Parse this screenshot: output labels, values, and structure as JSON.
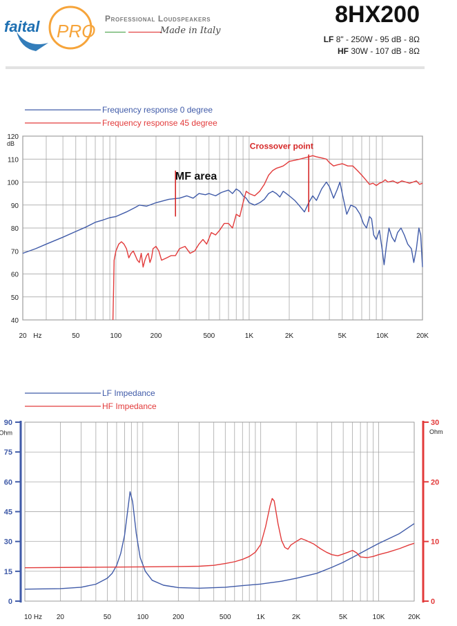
{
  "header": {
    "brand": "faital",
    "brand_sub": "PRO",
    "tagline": "Professional Loudspeakers",
    "made_in": "Made in Italy",
    "model": "8HX200",
    "spec_lf_label": "LF",
    "spec_lf": "8\" - 250W - 95 dB - 8Ω",
    "spec_hf_label": "HF",
    "spec_hf": "30W - 107 dB - 8Ω"
  },
  "colors": {
    "lf_blue": "#3f5aa8",
    "hf_red": "#e23a3a",
    "grid": "#9a9a9a",
    "annotation_red": "#d62828"
  },
  "chart_data": [
    {
      "type": "line",
      "x_scale": "log",
      "xlim": [
        20,
        20000
      ],
      "ylim": [
        40,
        120
      ],
      "ylabel": "dB",
      "xlabel": "Hz",
      "x_ticks": [
        20,
        50,
        100,
        200,
        500,
        1000,
        2000,
        5000,
        10000,
        20000
      ],
      "x_tick_labels": [
        "20",
        "50",
        "100",
        "200",
        "500",
        "1K",
        "2K",
        "5K",
        "10K",
        "20K"
      ],
      "y_ticks": [
        40,
        50,
        60,
        70,
        80,
        90,
        100,
        110,
        120
      ],
      "y_tick_labels": [
        "40",
        "50",
        "60",
        "70",
        "80",
        "90",
        "100",
        "110",
        "120"
      ],
      "grid": true,
      "legend": "top-left",
      "annotations": [
        {
          "text": "MF area",
          "x": 400,
          "y": 101
        },
        {
          "text": "Crossover point",
          "x": 1750,
          "y": 114.5
        }
      ],
      "markers": [
        {
          "x": 280,
          "y_range": [
            85,
            105
          ]
        },
        {
          "x": 2800,
          "y_range": [
            87,
            112
          ]
        }
      ],
      "series": [
        {
          "name": "Frequency response 0 degree",
          "color": "#3f5aa8",
          "points": [
            [
              20,
              69
            ],
            [
              25,
              71
            ],
            [
              30,
              73
            ],
            [
              40,
              76
            ],
            [
              50,
              78.5
            ],
            [
              60,
              80.5
            ],
            [
              70,
              82.5
            ],
            [
              80,
              83.5
            ],
            [
              90,
              84.5
            ],
            [
              100,
              85
            ],
            [
              120,
              87
            ],
            [
              140,
              89
            ],
            [
              150,
              90
            ],
            [
              170,
              89.5
            ],
            [
              200,
              91
            ],
            [
              250,
              92.5
            ],
            [
              300,
              93
            ],
            [
              340,
              94
            ],
            [
              380,
              93
            ],
            [
              420,
              95
            ],
            [
              470,
              94.5
            ],
            [
              500,
              95
            ],
            [
              560,
              94
            ],
            [
              620,
              95.5
            ],
            [
              700,
              96.5
            ],
            [
              750,
              95
            ],
            [
              800,
              97
            ],
            [
              850,
              96
            ],
            [
              900,
              94
            ],
            [
              950,
              93
            ],
            [
              1000,
              91
            ],
            [
              1100,
              90
            ],
            [
              1200,
              91
            ],
            [
              1300,
              92.5
            ],
            [
              1400,
              95
            ],
            [
              1500,
              96
            ],
            [
              1600,
              95
            ],
            [
              1700,
              93.5
            ],
            [
              1800,
              96
            ],
            [
              1900,
              95
            ],
            [
              2000,
              94
            ],
            [
              2200,
              92
            ],
            [
              2400,
              89.5
            ],
            [
              2600,
              87
            ],
            [
              2800,
              91
            ],
            [
              3000,
              94
            ],
            [
              3200,
              92
            ],
            [
              3500,
              97
            ],
            [
              3800,
              100
            ],
            [
              4000,
              98
            ],
            [
              4300,
              93
            ],
            [
              4600,
              97
            ],
            [
              4800,
              100
            ],
            [
              5000,
              95
            ],
            [
              5400,
              86
            ],
            [
              5800,
              90
            ],
            [
              6300,
              89
            ],
            [
              6800,
              86
            ],
            [
              7200,
              82
            ],
            [
              7600,
              80
            ],
            [
              8000,
              85
            ],
            [
              8300,
              84
            ],
            [
              8600,
              77
            ],
            [
              9000,
              75
            ],
            [
              9500,
              79
            ],
            [
              10000,
              70
            ],
            [
              10300,
              64
            ],
            [
              10700,
              72
            ],
            [
              11200,
              80
            ],
            [
              11800,
              76
            ],
            [
              12400,
              74
            ],
            [
              13000,
              78
            ],
            [
              13800,
              80
            ],
            [
              14600,
              77
            ],
            [
              15500,
              73
            ],
            [
              16500,
              71
            ],
            [
              17200,
              65
            ],
            [
              18000,
              71
            ],
            [
              18800,
              80
            ],
            [
              19400,
              77
            ],
            [
              20000,
              63
            ]
          ]
        },
        {
          "name": "Frequency response 45 degree",
          "color": "#e23a3a",
          "points": [
            [
              95,
              40
            ],
            [
              96,
              53
            ],
            [
              97,
              66
            ],
            [
              100,
              70
            ],
            [
              105,
              73
            ],
            [
              110,
              74
            ],
            [
              115,
              73
            ],
            [
              120,
              71
            ],
            [
              125,
              67
            ],
            [
              130,
              69
            ],
            [
              135,
              70
            ],
            [
              140,
              68
            ],
            [
              145,
              66
            ],
            [
              150,
              65
            ],
            [
              155,
              69
            ],
            [
              160,
              63
            ],
            [
              165,
              66
            ],
            [
              170,
              68
            ],
            [
              175,
              69
            ],
            [
              180,
              65
            ],
            [
              185,
              67
            ],
            [
              190,
              71
            ],
            [
              200,
              72
            ],
            [
              210,
              70
            ],
            [
              220,
              66
            ],
            [
              240,
              67
            ],
            [
              260,
              68
            ],
            [
              280,
              68
            ],
            [
              300,
              71
            ],
            [
              330,
              72
            ],
            [
              360,
              69
            ],
            [
              390,
              70
            ],
            [
              420,
              73
            ],
            [
              450,
              75
            ],
            [
              480,
              73
            ],
            [
              520,
              78
            ],
            [
              560,
              77
            ],
            [
              600,
              79
            ],
            [
              650,
              82
            ],
            [
              700,
              82
            ],
            [
              750,
              80
            ],
            [
              800,
              86
            ],
            [
              850,
              85
            ],
            [
              900,
              91
            ],
            [
              950,
              96
            ],
            [
              1000,
              95
            ],
            [
              1100,
              94
            ],
            [
              1200,
              96
            ],
            [
              1300,
              99
            ],
            [
              1400,
              103
            ],
            [
              1500,
              105
            ],
            [
              1600,
              106
            ],
            [
              1700,
              106.5
            ],
            [
              1800,
              107
            ],
            [
              1900,
              108
            ],
            [
              2000,
              109
            ],
            [
              2200,
              109.5
            ],
            [
              2400,
              110
            ],
            [
              2600,
              110.5
            ],
            [
              2800,
              111
            ],
            [
              3000,
              111.5
            ],
            [
              3200,
              111
            ],
            [
              3500,
              110.5
            ],
            [
              3800,
              110
            ],
            [
              4000,
              108.5
            ],
            [
              4300,
              107
            ],
            [
              4600,
              107.5
            ],
            [
              5000,
              108
            ],
            [
              5500,
              107
            ],
            [
              6000,
              107
            ],
            [
              6500,
              105
            ],
            [
              7000,
              103
            ],
            [
              7500,
              101
            ],
            [
              8000,
              99
            ],
            [
              8500,
              99.5
            ],
            [
              9000,
              98.5
            ],
            [
              9500,
              99.5
            ],
            [
              10000,
              100
            ],
            [
              10500,
              101
            ],
            [
              11000,
              100
            ],
            [
              12000,
              100.5
            ],
            [
              13000,
              99.5
            ],
            [
              14000,
              100.5
            ],
            [
              15000,
              100
            ],
            [
              16000,
              99.5
            ],
            [
              17000,
              100
            ],
            [
              18000,
              100.5
            ],
            [
              19000,
              99
            ],
            [
              20000,
              99.5
            ]
          ]
        }
      ]
    },
    {
      "type": "line",
      "x_scale": "log",
      "xlim": [
        10,
        20000
      ],
      "ylim": [
        0,
        90
      ],
      "ylabel": "Ohm",
      "xlabel": "",
      "x_ticks": [
        10,
        20,
        50,
        100,
        200,
        500,
        1000,
        2000,
        5000,
        10000,
        20000
      ],
      "x_tick_labels": [
        "10 Hz",
        "20",
        "50",
        "100",
        "200",
        "500",
        "1K",
        "2K",
        "5K",
        "10K",
        "20K"
      ],
      "y_ticks": [
        0,
        15,
        30,
        45,
        60,
        75,
        90
      ],
      "y_tick_labels": [
        "0",
        "15",
        "30",
        "45",
        "60",
        "75",
        "90"
      ],
      "y2lim": [
        0,
        30
      ],
      "y2label": "Ohm",
      "y2_ticks": [
        0,
        10,
        20,
        30
      ],
      "y2_tick_labels": [
        "0",
        "10",
        "20",
        "30"
      ],
      "grid": true,
      "legend": "top-left",
      "series": [
        {
          "name": "LF Impedance",
          "axis": "left",
          "color": "#3f5aa8",
          "points": [
            [
              10,
              6
            ],
            [
              20,
              6.3
            ],
            [
              30,
              7
            ],
            [
              40,
              8.5
            ],
            [
              50,
              11.5
            ],
            [
              55,
              14
            ],
            [
              60,
              18
            ],
            [
              65,
              24
            ],
            [
              70,
              33
            ],
            [
              75,
              47
            ],
            [
              78,
              55
            ],
            [
              82,
              50
            ],
            [
              88,
              34
            ],
            [
              95,
              22
            ],
            [
              105,
              15
            ],
            [
              120,
              10.5
            ],
            [
              150,
              8
            ],
            [
              200,
              6.8
            ],
            [
              300,
              6.5
            ],
            [
              500,
              7
            ],
            [
              700,
              7.8
            ],
            [
              1000,
              8.6
            ],
            [
              1500,
              10
            ],
            [
              2000,
              11.5
            ],
            [
              3000,
              14
            ],
            [
              4000,
              17
            ],
            [
              5000,
              19.5
            ],
            [
              6000,
              22
            ],
            [
              8000,
              26
            ],
            [
              10000,
              29
            ],
            [
              15000,
              34
            ],
            [
              20000,
              39
            ]
          ]
        },
        {
          "name": "HF Impedance",
          "axis": "right",
          "color": "#e23a3a",
          "points": [
            [
              10,
              5.6
            ],
            [
              50,
              5.7
            ],
            [
              100,
              5.75
            ],
            [
              200,
              5.8
            ],
            [
              300,
              5.85
            ],
            [
              400,
              6
            ],
            [
              500,
              6.3
            ],
            [
              600,
              6.6
            ],
            [
              700,
              7
            ],
            [
              800,
              7.5
            ],
            [
              900,
              8.2
            ],
            [
              1000,
              9.5
            ],
            [
              1100,
              12.5
            ],
            [
              1200,
              16
            ],
            [
              1250,
              17.2
            ],
            [
              1300,
              16.8
            ],
            [
              1400,
              13
            ],
            [
              1500,
              10.2
            ],
            [
              1600,
              9
            ],
            [
              1700,
              8.7
            ],
            [
              1800,
              9.4
            ],
            [
              2000,
              10
            ],
            [
              2200,
              10.5
            ],
            [
              2400,
              10.2
            ],
            [
              2800,
              9.6
            ],
            [
              3200,
              8.8
            ],
            [
              3600,
              8.2
            ],
            [
              4000,
              7.8
            ],
            [
              4500,
              7.6
            ],
            [
              5000,
              7.9
            ],
            [
              5500,
              8.2
            ],
            [
              6000,
              8.5
            ],
            [
              6500,
              8.1
            ],
            [
              7000,
              7.4
            ],
            [
              8000,
              7.3
            ],
            [
              9000,
              7.5
            ],
            [
              10000,
              7.8
            ],
            [
              12000,
              8.2
            ],
            [
              15000,
              8.8
            ],
            [
              18000,
              9.4
            ],
            [
              20000,
              9.7
            ]
          ]
        }
      ]
    }
  ]
}
